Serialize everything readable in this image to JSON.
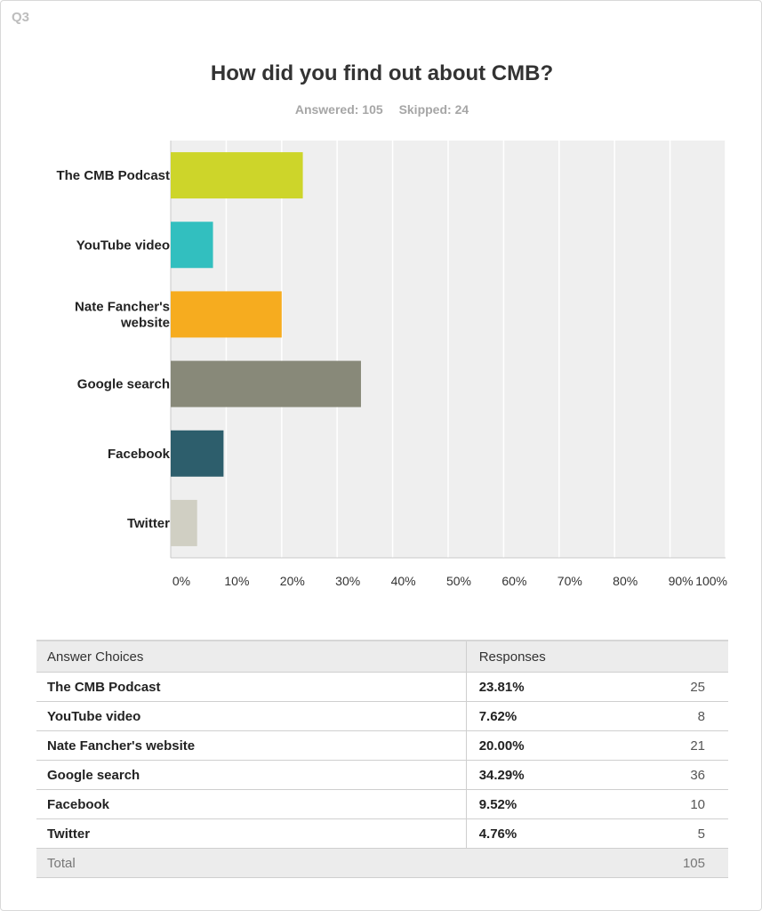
{
  "question_number": "Q3",
  "title": "How did you find out about CMB?",
  "answered_label": "Answered: 105",
  "skipped_label": "Skipped: 24",
  "colors": {
    "bar_colors": [
      "#cdd52a",
      "#32bfbf",
      "#f6ac1f",
      "#888979",
      "#2d5e6c",
      "#d0cfc3"
    ],
    "plot_background": "#efefef",
    "gridline": "#ffffff"
  },
  "chart_data": {
    "type": "bar",
    "orientation": "horizontal",
    "categories": [
      "The CMB Podcast",
      "YouTube video",
      "Nate Fancher's website",
      "Google search",
      "Facebook",
      "Twitter"
    ],
    "category_lines": [
      [
        "The CMB Podcast"
      ],
      [
        "YouTube video"
      ],
      [
        "Nate Fancher's",
        "website"
      ],
      [
        "Google search"
      ],
      [
        "Facebook"
      ],
      [
        "Twitter"
      ]
    ],
    "values": [
      23.81,
      7.62,
      20.0,
      34.29,
      9.52,
      4.76
    ],
    "xlim": [
      0,
      100
    ],
    "xticks": [
      "0%",
      "10%",
      "20%",
      "30%",
      "40%",
      "50%",
      "60%",
      "70%",
      "80%",
      "90%",
      "100%"
    ],
    "grid": true,
    "title": "How did you find out about CMB?"
  },
  "table": {
    "headers": {
      "choice": "Answer Choices",
      "responses": "Responses"
    },
    "rows": [
      {
        "choice": "The CMB Podcast",
        "percent": "23.81%",
        "count": "25"
      },
      {
        "choice": "YouTube video",
        "percent": "7.62%",
        "count": "8"
      },
      {
        "choice": "Nate Fancher's website",
        "percent": "20.00%",
        "count": "21"
      },
      {
        "choice": "Google search",
        "percent": "34.29%",
        "count": "36"
      },
      {
        "choice": "Facebook",
        "percent": "9.52%",
        "count": "10"
      },
      {
        "choice": "Twitter",
        "percent": "4.76%",
        "count": "5"
      }
    ],
    "total_label": "Total",
    "total_count": "105"
  }
}
